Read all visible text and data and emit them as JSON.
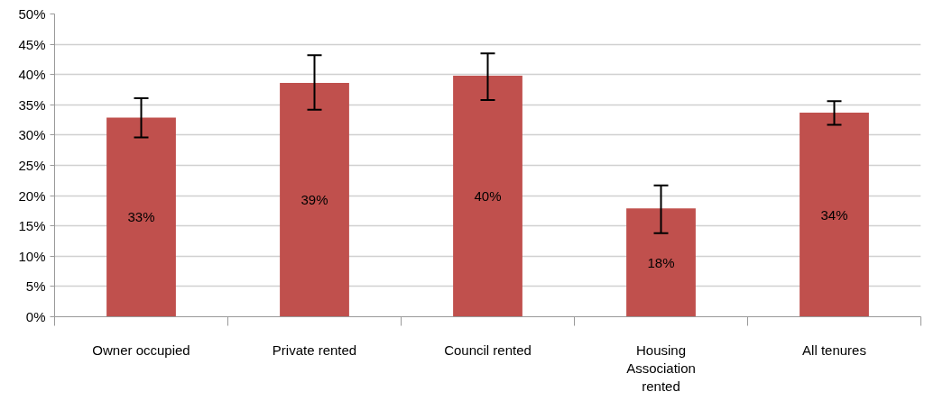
{
  "chart_data": {
    "type": "bar",
    "categories": [
      "Owner occupied",
      "Private rented",
      "Council rented",
      "Housing Association rented",
      "All tenures"
    ],
    "values": [
      32.9,
      38.6,
      39.8,
      17.9,
      33.7
    ],
    "value_labels": [
      "33%",
      "39%",
      "40%",
      "18%",
      "34%"
    ],
    "color": "#c0504d",
    "errors": [
      [
        29.6,
        36.1
      ],
      [
        34.2,
        43.2
      ],
      [
        35.8,
        43.5
      ],
      [
        13.8,
        21.7
      ],
      [
        31.7,
        35.6
      ]
    ],
    "ylim": [
      0,
      50
    ],
    "yticks": [
      {
        "value": 0,
        "label": "0%"
      },
      {
        "value": 5,
        "label": "5%"
      },
      {
        "value": 10,
        "label": "10%"
      },
      {
        "value": 15,
        "label": "15%"
      },
      {
        "value": 20,
        "label": "20%"
      },
      {
        "value": 25,
        "label": "25%"
      },
      {
        "value": 30,
        "label": "30%"
      },
      {
        "value": 35,
        "label": "35%"
      },
      {
        "value": 40,
        "label": "40%"
      },
      {
        "value": 45,
        "label": "45%"
      },
      {
        "value": 50,
        "label": "50%"
      }
    ],
    "grid": "y"
  }
}
